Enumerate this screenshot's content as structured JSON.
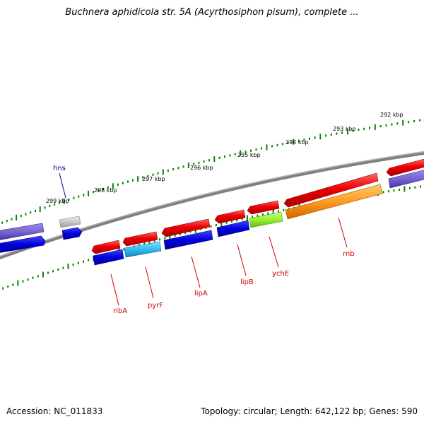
{
  "title": "Buchnera aphidicola str. 5A (Acyrthosiphon pisum), complete ...",
  "footer": {
    "accession": "Accession: NC_011833",
    "summary": "Topology: circular; Length: 642,122 bp; Genes: 590"
  },
  "scale_labels": [
    "299 kbp",
    "298 kbp",
    "297 kbp",
    "296 kbp",
    "295 kbp",
    "294 kbp",
    "293 kbp",
    "292 kbp"
  ],
  "genes": [
    {
      "name": "hns",
      "color": "#0000cc"
    },
    {
      "name": "ribA",
      "color": "#cc0000"
    },
    {
      "name": "pyrF",
      "color": "#cc0000"
    },
    {
      "name": "lipA",
      "color": "#cc0000"
    },
    {
      "name": "lipB",
      "color": "#cc0000"
    },
    {
      "name": "ychE",
      "color": "#cc0000"
    },
    {
      "name": "rnb",
      "color": "#cc0000"
    }
  ],
  "colors": {
    "cds": "#ee0000",
    "gene": "#0000dd",
    "rrna": "#7766cc",
    "trna": "#c8c8c8",
    "misc_blue": "#33bbee",
    "misc_green": "#99ee33",
    "orange": "#ff9922",
    "backbone": "#808080",
    "ticks": "#008800"
  }
}
